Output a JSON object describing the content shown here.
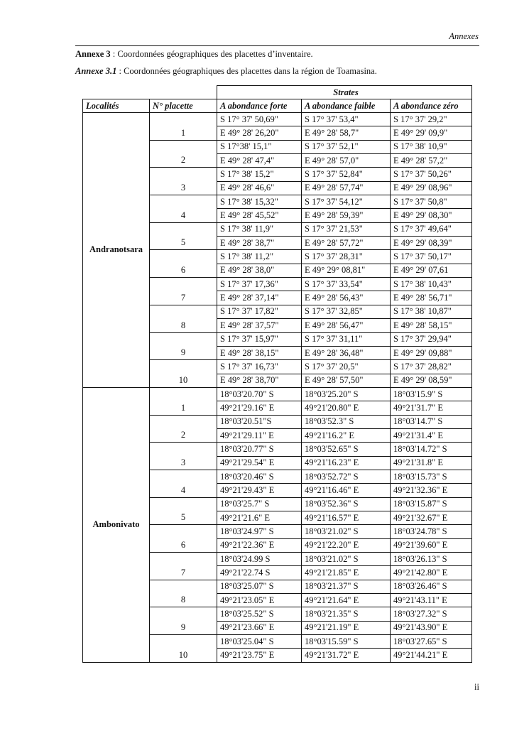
{
  "header": {
    "running_title": "Annexes"
  },
  "caption1": {
    "label": "Annexe 3",
    "text": " : Coordonnées géographiques des placettes d’inventaire."
  },
  "caption2": {
    "label": "Annexe 3.1",
    "text": " : Coordonnées géographiques des placettes dans la région de Toamasina."
  },
  "table": {
    "group_header": "Strates",
    "columns": [
      "Localités",
      "N° placette",
      "A abondance forte",
      "A abondance faible",
      "A abondance zéro"
    ],
    "localities": [
      {
        "name": "Andranotsara",
        "placettes": [
          {
            "n": "1",
            "forte": [
              "S 17° 37' 50,69\"",
              "E 49° 28' 26,20\""
            ],
            "faible": [
              "S 17° 37' 53,4\"",
              "E 49° 28' 58,7\""
            ],
            "zero": [
              "S 17° 37' 29,2\"",
              "E 49° 29' 09,9\""
            ]
          },
          {
            "n": "2",
            "forte": [
              "S 17°38' 15,1\"",
              "E 49° 28' 47,4\""
            ],
            "faible": [
              "S 17° 37' 52,1\"",
              "E 49° 28' 57,0\""
            ],
            "zero": [
              "S 17° 38' 10,9\"",
              "E 49° 28' 57,2\""
            ]
          },
          {
            "n": "3",
            "forte": [
              "S 17° 38' 15,2\"",
              "E 49° 28' 46,6\""
            ],
            "faible": [
              "S 17° 37' 52,84\"",
              "E 49° 28' 57,74\""
            ],
            "zero": [
              "S 17° 37' 50,26\"",
              "E 49° 29' 08,96\""
            ]
          },
          {
            "n": "4",
            "forte": [
              "S 17° 38' 15,32\"",
              "E 49° 28' 45,52\""
            ],
            "faible": [
              "S 17° 37' 54,12\"",
              "E 49° 28' 59,39\""
            ],
            "zero": [
              "S 17° 37' 50,8\"",
              "E 49° 29' 08,30\""
            ]
          },
          {
            "n": "5",
            "forte": [
              "S 17° 38' 11,9\"",
              "E 49° 28' 38,7\""
            ],
            "faible": [
              "S 17° 37' 21,53\"",
              "E 49° 28' 57,72\""
            ],
            "zero": [
              "S 17° 37' 49,64\"",
              "E 49° 29' 08,39\""
            ]
          },
          {
            "n": "6",
            "forte": [
              "S 17° 38' 11,2\"",
              "E 49° 28' 38,0\""
            ],
            "faible": [
              "S 17° 37' 28,31\"",
              "E 49° 29° 08,81\""
            ],
            "zero": [
              "S 17° 37' 50,17\"",
              "E 49° 29' 07,61"
            ]
          },
          {
            "n": "7",
            "forte": [
              "S 17° 37' 17,36\"",
              "E 49° 28' 37,14\""
            ],
            "faible": [
              "S 17° 37' 33,54\"",
              "E 49° 28' 56,43\""
            ],
            "zero": [
              "S 17° 38' 10,43\"",
              "E 49° 28' 56,71\""
            ]
          },
          {
            "n": "8",
            "forte": [
              "S 17° 37' 17,82\"",
              "E 49° 28' 37,57\""
            ],
            "faible": [
              "S 17° 37' 32,85\"",
              "E 49° 28' 56,47\""
            ],
            "zero": [
              "S 17° 38' 10,87\"",
              "E 49° 28' 58,15\""
            ]
          },
          {
            "n": "9",
            "forte": [
              "S 17° 37' 15,97\"",
              "E 49° 28' 38,15\""
            ],
            "faible": [
              "S 17° 37' 31,11\"",
              "E 49° 28' 36,48\""
            ],
            "zero": [
              "S 17° 37' 29,94\"",
              "E 49° 29' 09,88\""
            ]
          },
          {
            "n": "10",
            "forte": [
              "S 17° 37' 16,73\"",
              "E 49° 28' 38,70\""
            ],
            "faible": [
              "S 17° 37' 20,5\"",
              "E 49° 28' 57,50\""
            ],
            "zero": [
              "S 17° 37' 28,82\"",
              "E 49° 29' 08,59\""
            ]
          }
        ]
      },
      {
        "name": "Ambonivato",
        "placettes": [
          {
            "n": "1",
            "forte": [
              "18°03'20.70\" S",
              "49°21'29.16\" E"
            ],
            "faible": [
              "18°03'25.20\" S",
              "49°21'20.80\" E"
            ],
            "zero": [
              "18°03'15.9\" S",
              "49°21'31.7\" E"
            ]
          },
          {
            "n": "2",
            "forte": [
              "18°03'20.51\"S",
              "49°21'29.11\" E"
            ],
            "faible": [
              "18°03'52.3\" S",
              "49°21'16.2\" E"
            ],
            "zero": [
              "18°03'14.7\" S",
              "49°21'31.4\" E"
            ]
          },
          {
            "n": "3",
            "forte": [
              "18°03'20.77\" S",
              "49°21'29.54\" E"
            ],
            "faible": [
              "18°03'52.65\" S",
              "49°21'16.23\" E"
            ],
            "zero": [
              "18°03'14.72\" S",
              "49°21'31.8\" E"
            ]
          },
          {
            "n": "4",
            "forte": [
              "18°03'20.46\" S",
              "49°21'29.43\" E"
            ],
            "faible": [
              "18°03'52.72\" S",
              "49°21'16.46\" E"
            ],
            "zero": [
              "18°03'15.73\" S",
              "49°21'32.36\" E"
            ]
          },
          {
            "n": "5",
            "forte": [
              "18°03'25.7\" S",
              "49°21'21.6\" E"
            ],
            "faible": [
              "18°03'52.36\" S",
              "49°21'16.57\" E"
            ],
            "zero": [
              "18°03'15.87\" S",
              "49°21'32.67\" E"
            ]
          },
          {
            "n": "6",
            "forte": [
              "18°03'24.97\" S",
              "49°21'22.36\" E"
            ],
            "faible": [
              "18°03'21.02\" S",
              "49°21'22.20\" E"
            ],
            "zero": [
              "18°03'24.78\" S",
              "49°21'39.60\" E"
            ]
          },
          {
            "n": "7",
            "forte": [
              "18°03'24.99 S",
              "49°21'22.74 S"
            ],
            "faible": [
              "18°03'21.02\" S",
              "49°21'21.85\" E"
            ],
            "zero": [
              "18°03'26.13\" S",
              "49°21'42.80\" E"
            ]
          },
          {
            "n": "8",
            "forte": [
              "18°03'25.07\" S",
              "49°21'23.05\" E"
            ],
            "faible": [
              "18°03'21.37\" S",
              "49°21'21.64\" E"
            ],
            "zero": [
              "18°03'26.46\" S",
              "49°21'43.11\" E"
            ]
          },
          {
            "n": "9",
            "forte": [
              "18°03'25.52\" S",
              "49°21'23.66\" E"
            ],
            "faible": [
              "18°03'21.35\" S",
              "49°21'21.19\" E"
            ],
            "zero": [
              "18°03'27.32\" S",
              "49°21'43.90\" E"
            ]
          },
          {
            "n": "10",
            "forte": [
              "18°03'25.04\" S",
              "49°21'23.75\" E"
            ],
            "faible": [
              "18°03'15.59\" S",
              "49°21'31.72\" E"
            ],
            "zero": [
              "18°03'27.65\" S",
              "49°21'44.21\" E"
            ]
          }
        ]
      }
    ]
  },
  "footer": {
    "page_number": "ii"
  }
}
